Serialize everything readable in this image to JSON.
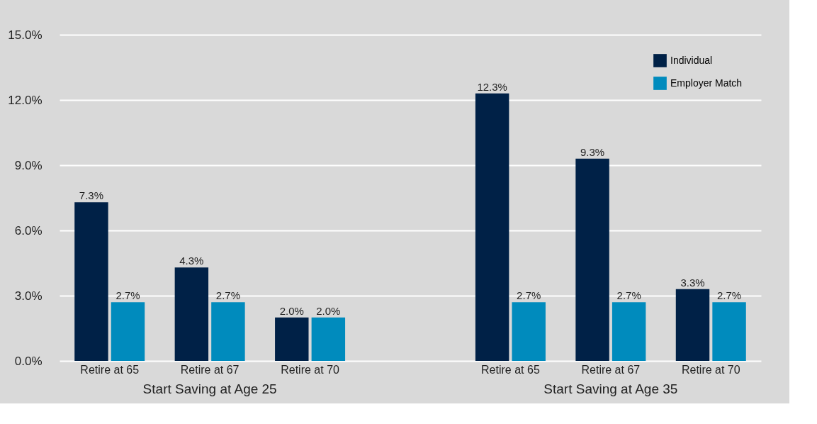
{
  "chart_data": {
    "type": "bar",
    "categories": [
      "Retire at 65",
      "Retire at 67",
      "Retire at 70",
      "Retire at 65",
      "Retire at 67",
      "Retire at 70"
    ],
    "series": [
      {
        "name": "Individual",
        "color": "#002147",
        "values": [
          7.3,
          4.3,
          2.0,
          12.3,
          9.3,
          3.3
        ],
        "value_labels": [
          "7.3%",
          "4.3%",
          "2.0%",
          "12.3%",
          "9.3%",
          "3.3%"
        ]
      },
      {
        "name": "Employer Match",
        "color": "#008bbd",
        "values": [
          2.7,
          2.7,
          2.0,
          2.7,
          2.7,
          2.7
        ],
        "value_labels": [
          "2.7%",
          "2.7%",
          "2.0%",
          "2.7%",
          "2.7%",
          "2.7%"
        ]
      }
    ],
    "ylim": [
      0,
      15
    ],
    "yticks": [
      {
        "value": 0,
        "label": "0.0%"
      },
      {
        "value": 3,
        "label": "3.0%"
      },
      {
        "value": 6,
        "label": "6.0%"
      },
      {
        "value": 9,
        "label": "9.0%"
      },
      {
        "value": 12,
        "label": "12.0%"
      },
      {
        "value": 15,
        "label": "15.0%"
      }
    ],
    "annotations": [
      "Start Saving at Age 25",
      "Start Saving at Age 35"
    ],
    "grid": "y",
    "legend": "top right"
  }
}
